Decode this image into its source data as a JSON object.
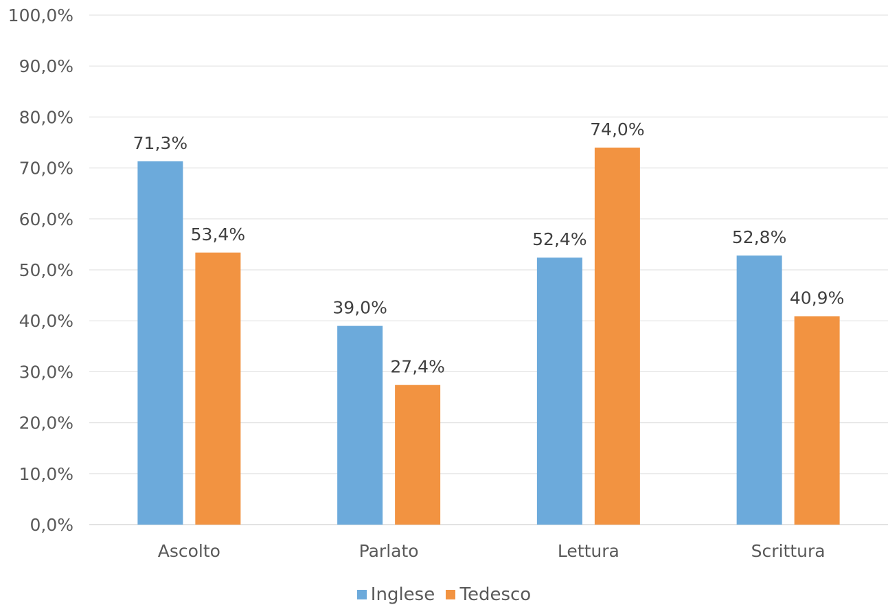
{
  "chart_data": {
    "type": "bar",
    "categories": [
      "Ascolto",
      "Parlato",
      "Lettura",
      "Scrittura"
    ],
    "series": [
      {
        "name": "Inglese",
        "values": [
          71.3,
          39.0,
          52.4,
          52.8
        ],
        "labels": [
          "71,3%",
          "39,0%",
          "52,4%",
          "52,8%"
        ],
        "color": "#6CAADB"
      },
      {
        "name": "Tedesco",
        "values": [
          53.4,
          27.4,
          74.0,
          40.9
        ],
        "labels": [
          "53,4%",
          "27,4%",
          "74,0%",
          "40,9%"
        ],
        "color": "#F29341"
      }
    ],
    "ylim": [
      0,
      100
    ],
    "yticks": [
      "0,0%",
      "10,0%",
      "20,0%",
      "30,0%",
      "40,0%",
      "50,0%",
      "60,0%",
      "70,0%",
      "80,0%",
      "90,0%",
      "100,0%"
    ],
    "grid": true,
    "legend_position": "bottom",
    "title": "",
    "xlabel": "",
    "ylabel": ""
  }
}
